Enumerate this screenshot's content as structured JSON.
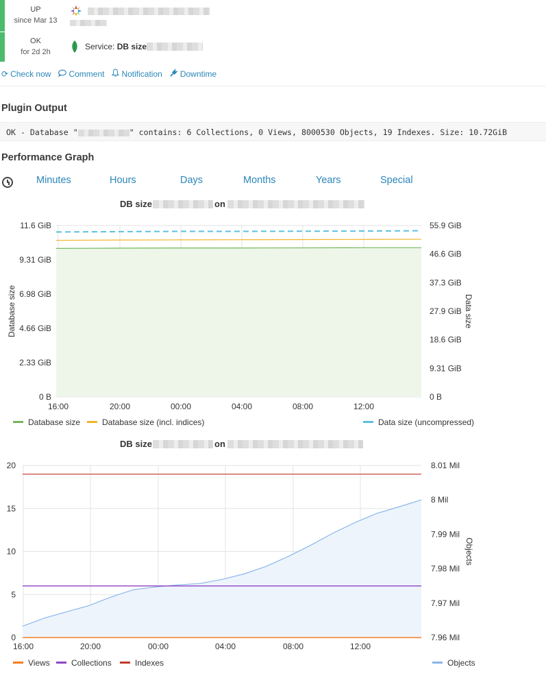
{
  "status": {
    "host_state": "UP",
    "host_since": "since Mar 13",
    "service_state": "OK",
    "service_since": "for 2d 2h",
    "service_label": "Service:",
    "service_name": "DB size"
  },
  "actions": [
    "Check now",
    "Comment",
    "Notification",
    "Downtime"
  ],
  "plugin_output": {
    "heading": "Plugin Output",
    "text_prefix": "OK - Database \"",
    "text_suffix": "\" contains: 6 Collections, 0 Views, 8000530 Objects, 19 Indexes. Size: 10.72GiB"
  },
  "performance": {
    "heading": "Performance Graph",
    "tabs": [
      "Minutes",
      "Hours",
      "Days",
      "Months",
      "Years",
      "Special"
    ]
  },
  "colors": {
    "green": "#74b65a",
    "orange": "#f0b429",
    "cyan": "#5bc0de",
    "views": "#f57c1f",
    "collections": "#8e44c4",
    "indexes": "#c0392b",
    "objects": "#8ab6ea",
    "link": "#2a86b9",
    "state": "#4cbb6c"
  },
  "graph1": {
    "title_prefix": "DB size",
    "title_mid": "on",
    "chart_data": {
      "type": "line",
      "x_ticks": [
        "16:00",
        "20:00",
        "00:00",
        "04:00",
        "08:00",
        "12:00"
      ],
      "y_left_ticks": [
        "0 B",
        "2.33 GiB",
        "4.66 GiB",
        "6.98 GiB",
        "9.31 GiB",
        "11.6 GiB"
      ],
      "y_right_ticks": [
        "0 B",
        "9.31 GiB",
        "18.6 GiB",
        "27.9 GiB",
        "37.3 GiB",
        "46.6 GiB",
        "55.9 GiB"
      ],
      "ylabel_left": "Database size",
      "ylabel_right": "Data size",
      "series": [
        {
          "name": "Database size",
          "axis": "left",
          "values_gib": [
            10.05,
            10.07,
            10.08,
            10.08,
            10.09,
            10.1,
            10.1
          ]
        },
        {
          "name": "Database size (incl. indices)",
          "axis": "left",
          "values_gib": [
            10.6,
            10.62,
            10.63,
            10.64,
            10.65,
            10.66,
            10.67
          ]
        },
        {
          "name": "Data size (uncompressed)",
          "axis": "right",
          "values_gib": [
            53.8,
            53.9,
            54.0,
            54.0,
            54.05,
            54.1,
            54.2
          ]
        }
      ],
      "legend": [
        "Database size",
        "Database size (incl. indices)",
        "Data size (uncompressed)"
      ]
    }
  },
  "graph2": {
    "title_prefix": "DB size",
    "title_mid": "on",
    "chart_data": {
      "type": "line",
      "x_ticks": [
        "16:00",
        "20:00",
        "00:00",
        "04:00",
        "08:00",
        "12:00"
      ],
      "y_left_ticks": [
        "0",
        "5",
        "10",
        "15",
        "20"
      ],
      "y_right_ticks": [
        "7.96 Mil",
        "7.97 Mil",
        "7.98 Mil",
        "7.99 Mil",
        "8 Mil",
        "8.01 Mil"
      ],
      "ylabel_right": "Objects",
      "series": [
        {
          "name": "Views",
          "axis": "left",
          "values": [
            0,
            0
          ]
        },
        {
          "name": "Collections",
          "axis": "left",
          "values": [
            6,
            6
          ]
        },
        {
          "name": "Indexes",
          "axis": "left",
          "values": [
            19,
            19
          ]
        },
        {
          "name": "Objects",
          "axis": "right",
          "values": [
            7.9633,
            7.9657,
            7.9675,
            7.9693,
            7.9718,
            7.9739,
            7.9747,
            7.9753,
            7.9757,
            7.9769,
            7.9785,
            7.9807,
            7.9836,
            7.9868,
            7.9903,
            7.9934,
            7.9961,
            7.998,
            8.0
          ]
        }
      ],
      "legend": [
        "Views",
        "Collections",
        "Indexes",
        "Objects"
      ]
    }
  }
}
